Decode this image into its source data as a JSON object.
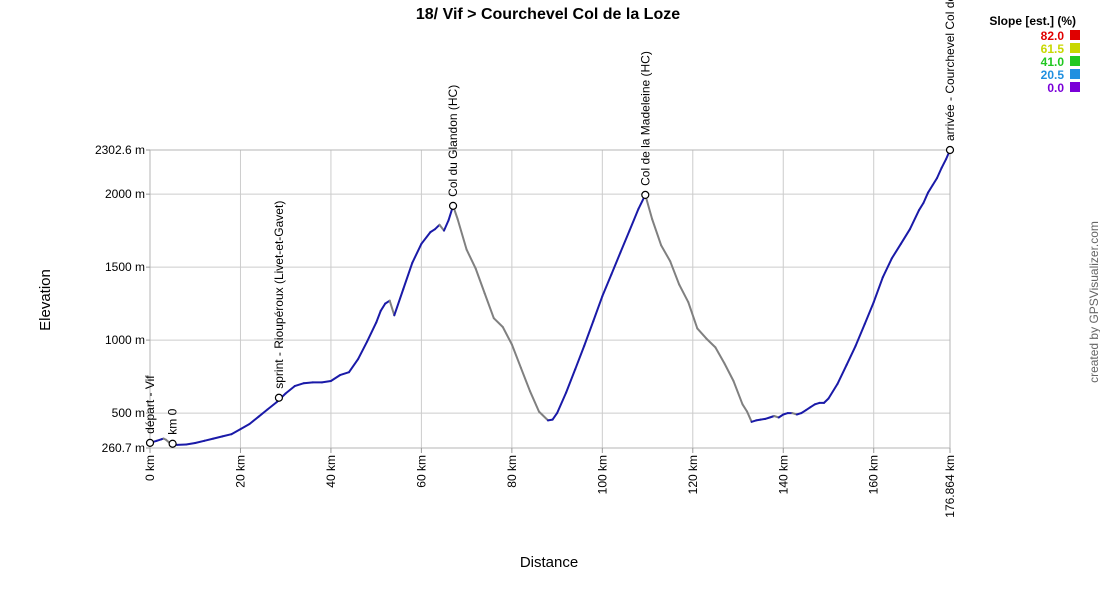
{
  "chart_data": {
    "type": "line",
    "title": "18/ Vif > Courchevel Col de la Loze",
    "xlabel": "Distance",
    "ylabel": "Elevation",
    "x_unit": "km",
    "y_unit": "m",
    "xlim": [
      0,
      176.864
    ],
    "ylim": [
      260.7,
      2302.6
    ],
    "x_ticks": [
      0,
      20,
      40,
      60,
      80,
      100,
      120,
      140,
      160,
      176.864
    ],
    "x_tick_labels": [
      "0 km",
      "20 km",
      "40 km",
      "60 km",
      "80 km",
      "100 km",
      "120 km",
      "140 km",
      "160 km",
      "176.864 km"
    ],
    "y_ticks": [
      260.7,
      500,
      1000,
      1500,
      2000,
      2302.6
    ],
    "y_tick_labels": [
      "260.7 m",
      "500 m",
      "1000 m",
      "1500 m",
      "2000 m",
      "2302.6 m"
    ],
    "grid": true,
    "series": [
      {
        "x": [
          0,
          1.5,
          2.5,
          3,
          3.5,
          4.2,
          5,
          6,
          8,
          10,
          12,
          14,
          16,
          18,
          20,
          22,
          24,
          26,
          28,
          30,
          32,
          34,
          36,
          38,
          40,
          42,
          44,
          46,
          48,
          50,
          51,
          52,
          53,
          54,
          56,
          58,
          60,
          62,
          63,
          64,
          65,
          66,
          67,
          68,
          70,
          72,
          74,
          76,
          78,
          80,
          82,
          84,
          86,
          88,
          89,
          90,
          92,
          94,
          96,
          98,
          100,
          102,
          104,
          106,
          108,
          109.5,
          111,
          113,
          115,
          117,
          119,
          121,
          123,
          125,
          127,
          129,
          131,
          132,
          133,
          134,
          135,
          136,
          137,
          138,
          139,
          140,
          141,
          142,
          143,
          144,
          145,
          146,
          147,
          148,
          149,
          150,
          152,
          154,
          156,
          158,
          160,
          162,
          164,
          166,
          168,
          170,
          171,
          172,
          173,
          174,
          175,
          176,
          176.864
        ],
        "y": [
          296,
          310,
          320,
          325,
          318,
          300,
          290,
          282,
          285,
          295,
          310,
          325,
          340,
          355,
          390,
          425,
          475,
          525,
          575,
          635,
          685,
          705,
          710,
          710,
          720,
          760,
          780,
          870,
          990,
          1120,
          1200,
          1250,
          1270,
          1170,
          1350,
          1530,
          1660,
          1740,
          1760,
          1790,
          1750,
          1820,
          1920,
          1830,
          1620,
          1490,
          1320,
          1150,
          1090,
          970,
          810,
          650,
          510,
          450,
          455,
          500,
          640,
          800,
          960,
          1130,
          1300,
          1450,
          1600,
          1750,
          1900,
          1995,
          1830,
          1650,
          1540,
          1380,
          1260,
          1080,
          1010,
          950,
          840,
          720,
          560,
          510,
          440,
          450,
          455,
          460,
          470,
          480,
          470,
          490,
          500,
          500,
          490,
          500,
          520,
          540,
          560,
          570,
          570,
          600,
          700,
          830,
          960,
          1110,
          1260,
          1430,
          1560,
          1660,
          1760,
          1890,
          1940,
          2010,
          2060,
          2110,
          2180,
          2240,
          2302.6
        ]
      }
    ],
    "waypoints": [
      {
        "label": "départ - Vif",
        "x": 0,
        "y": 296
      },
      {
        "label": "km 0",
        "x": 5,
        "y": 290
      },
      {
        "label": "sprint - Rioupéroux (Livet-et-Gavet)",
        "x": 28.5,
        "y": 605
      },
      {
        "label": "Col du Glandon (HC)",
        "x": 67,
        "y": 1920
      },
      {
        "label": "Col de la Madeleine (HC)",
        "x": 109.5,
        "y": 1995
      },
      {
        "label": "arrivée - Courchevel Col de la Loze",
        "x": 176.864,
        "y": 2302.6
      }
    ],
    "legend": {
      "title": "Slope [est.] (%)",
      "placement": "top-right",
      "entries": [
        {
          "label": "82.0",
          "color": "#e00000"
        },
        {
          "label": "61.5",
          "color": "#c8d800"
        },
        {
          "label": "41.0",
          "color": "#20c820"
        },
        {
          "label": "20.5",
          "color": "#2090e0"
        },
        {
          "label": "0.0",
          "color": "#7a00d8"
        }
      ]
    },
    "line_colors": {
      "climb": "#1a1aa8",
      "descent": "#808080"
    }
  },
  "credit": "created by GPSVisualizer.com"
}
